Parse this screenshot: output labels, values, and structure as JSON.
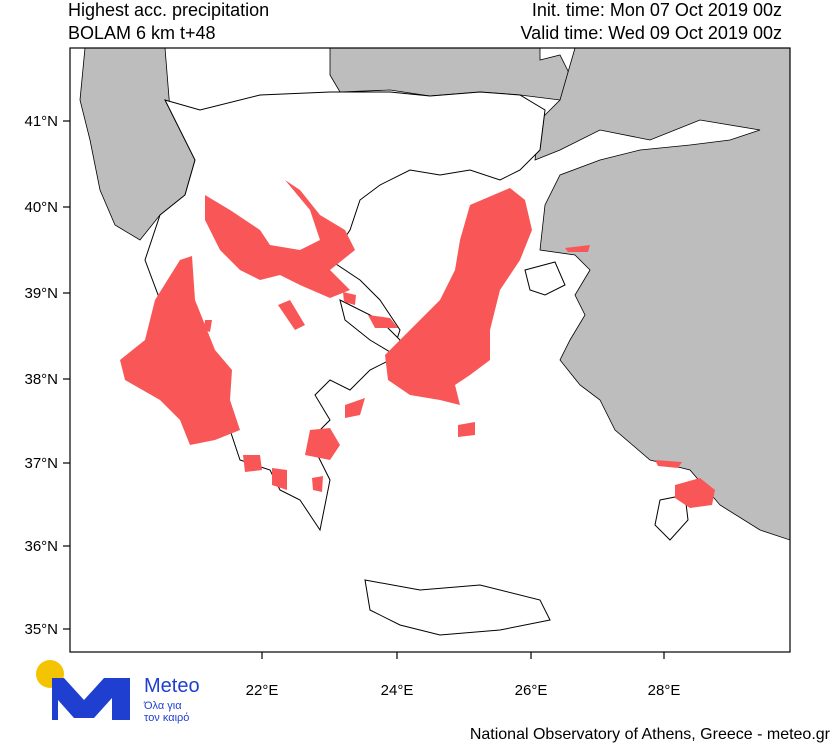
{
  "header": {
    "title_line1": "Highest acc. precipitation",
    "title_line2": "BOLAM 6 km t+48",
    "init_time": "Init. time: Mon 07 Oct 2019 00z",
    "valid_time": "Valid time: Wed 09 Oct 2019 00z"
  },
  "map": {
    "lat_labels": [
      "41°N",
      "40°N",
      "39°N",
      "38°N",
      "37°N",
      "36°N",
      "35°N"
    ],
    "lon_labels": [
      "22°E",
      "24°E",
      "26°E",
      "28°E"
    ]
  },
  "logo": {
    "name": "Meteo",
    "tagline_line1": "Όλα για",
    "tagline_line2": "τον καιρό"
  },
  "footer": "National Observatory of Athens, Greece - meteo.gr"
}
